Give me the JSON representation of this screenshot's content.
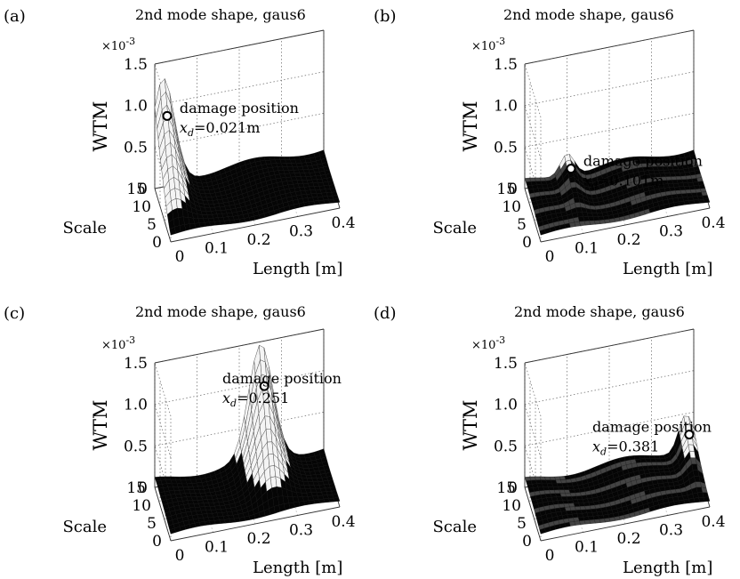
{
  "figure": {
    "panels": [
      {
        "letter": "(a)",
        "title": "2nd mode shape, gaus6",
        "annotation": "damage position",
        "xd_value": "=0.021m"
      },
      {
        "letter": "(b)",
        "title": "2nd mode shape, gaus6",
        "annotation": "damage position",
        "xd_value": "=0.101m"
      },
      {
        "letter": "(c)",
        "title": "2nd mode shape, gaus6",
        "annotation": "damage position",
        "xd_value": "=0.251"
      },
      {
        "letter": "(d)",
        "title": "2nd mode shape, gaus6",
        "annotation": "damage position",
        "xd_value": "=0.381"
      }
    ],
    "xd_symbol": "x",
    "xd_subscript": "d"
  },
  "chart_data": [
    {
      "type": "surface",
      "panel": "(a)",
      "title": "2nd mode shape, gaus6",
      "xlabel": "Length [m]",
      "ylabel": "Scale",
      "zlabel": "WTM",
      "z_exponent": "×10",
      "z_exponent_power": "-3",
      "xlim": [
        0,
        0.4
      ],
      "ylim": [
        0,
        15
      ],
      "zlim": [
        0,
        1.5
      ],
      "xticks": [
        "0",
        "0.1",
        "0.2",
        "0.3",
        "0.4"
      ],
      "yticks": [
        "0",
        "5",
        "10",
        "15"
      ],
      "zticks": [
        "0",
        "0.5",
        "1.0",
        "1.5"
      ],
      "damage_position_m": 0.021,
      "peak_wtm_e3": 1.2,
      "grid": true
    },
    {
      "type": "surface",
      "panel": "(b)",
      "title": "2nd mode shape, gaus6",
      "xlabel": "Length [m]",
      "ylabel": "Scale",
      "zlabel": "WTM",
      "z_exponent": "×10",
      "z_exponent_power": "-3",
      "xlim": [
        0,
        0.4
      ],
      "ylim": [
        0,
        15
      ],
      "zlim": [
        0,
        1.5
      ],
      "xticks": [
        "0",
        "0.1",
        "0.2",
        "0.3",
        "0.4"
      ],
      "yticks": [
        "0",
        "5",
        "10",
        "15"
      ],
      "zticks": [
        "0",
        "0.5",
        "1.0",
        "1.5"
      ],
      "damage_position_m": 0.101,
      "peak_wtm_e3": 0.28,
      "grid": true
    },
    {
      "type": "surface",
      "panel": "(c)",
      "title": "2nd mode shape, gaus6",
      "xlabel": "Length [m]",
      "ylabel": "Scale",
      "zlabel": "WTM",
      "z_exponent": "×10",
      "z_exponent_power": "-3",
      "xlim": [
        0,
        0.4
      ],
      "ylim": [
        0,
        15
      ],
      "zlim": [
        0,
        1.5
      ],
      "xticks": [
        "0",
        "0.1",
        "0.2",
        "0.3",
        "0.4"
      ],
      "yticks": [
        "0",
        "5",
        "10",
        "15"
      ],
      "zticks": [
        "0",
        "0.5",
        "1.0",
        "1.5"
      ],
      "damage_position_m": 0.251,
      "peak_wtm_e3": 1.35,
      "grid": true
    },
    {
      "type": "surface",
      "panel": "(d)",
      "title": "2nd mode shape, gaus6",
      "xlabel": "Length [m]",
      "ylabel": "Scale",
      "zlabel": "WTM",
      "z_exponent": "×10",
      "z_exponent_power": "-3",
      "xlim": [
        0,
        0.4
      ],
      "ylim": [
        0,
        15
      ],
      "zlim": [
        0,
        1.5
      ],
      "xticks": [
        "0",
        "0.1",
        "0.2",
        "0.3",
        "0.4"
      ],
      "yticks": [
        "0",
        "5",
        "10",
        "15"
      ],
      "zticks": [
        "0",
        "0.5",
        "1.0",
        "1.5"
      ],
      "damage_position_m": 0.381,
      "peak_wtm_e3": 0.45,
      "grid": true
    }
  ]
}
